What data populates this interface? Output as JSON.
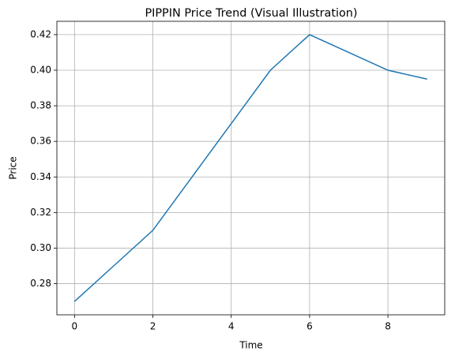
{
  "chart_data": {
    "type": "line",
    "title": "PIPPIN Price Trend (Visual Illustration)",
    "x_label": "Time",
    "y_label": "Price",
    "x": [
      0,
      1,
      2,
      3,
      4,
      5,
      6,
      7,
      8,
      9
    ],
    "series": [
      {
        "color": "#1f77b4",
        "values": [
          0.27,
          0.29,
          0.31,
          0.34,
          0.37,
          0.4,
          0.42,
          0.41,
          0.4,
          0.395
        ]
      }
    ],
    "xlim": [
      -0.45,
      9.45
    ],
    "xticks": [
      0,
      2,
      4,
      6,
      8
    ],
    "ylim": [
      0.2625,
      0.4275
    ],
    "yticks": [
      0.28,
      {
        "value": 0.3,
        "label": "0.30"
      },
      0.32,
      0.34,
      0.36,
      0.38,
      {
        "value": 0.4,
        "label": "0.40"
      },
      0.42
    ],
    "grid": true
  }
}
